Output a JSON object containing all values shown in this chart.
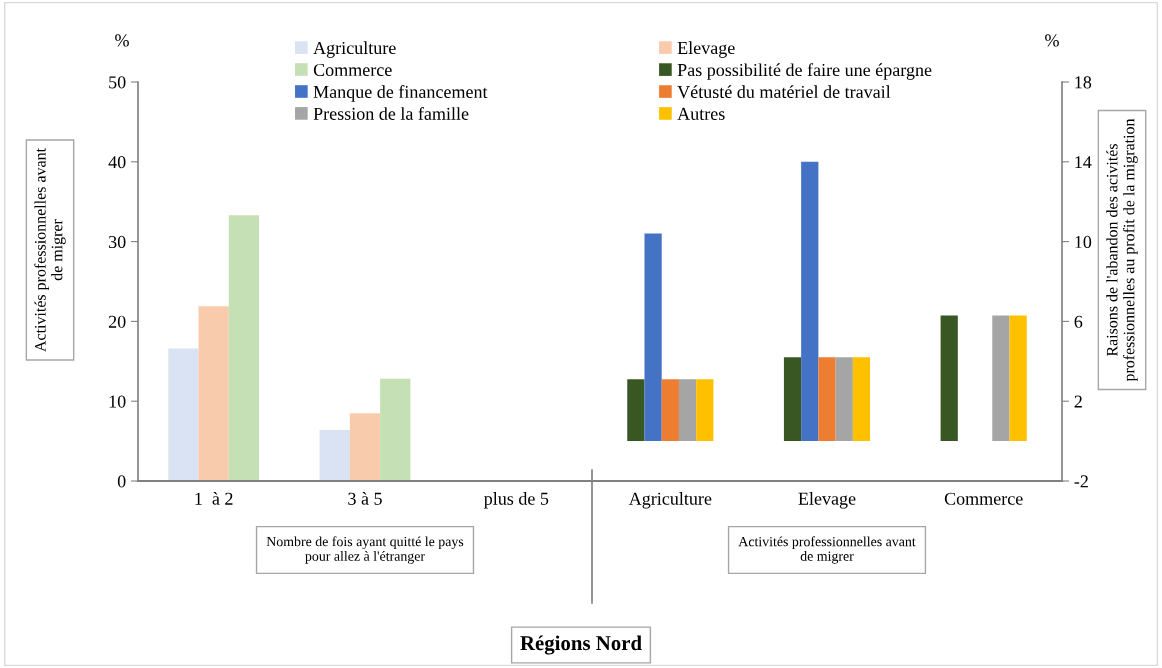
{
  "chart_data": [
    {
      "type": "bar",
      "title": "Régions Nord",
      "ylabel": "Activités professionnelles avant\nde migrer",
      "xlabel": "Nombre de fois ayant quitté le pays\npour allez à l'étranger",
      "categories": [
        "1  à 2",
        "3 à 5",
        "plus de 5"
      ],
      "series": [
        {
          "name": "Agriculture",
          "color": "#dae3f3",
          "values": [
            16.6,
            6.4,
            null
          ]
        },
        {
          "name": "Elevage",
          "color": "#f8cbad",
          "values": [
            21.9,
            8.5,
            null
          ]
        },
        {
          "name": "Commerce",
          "color": "#c5e0b4",
          "values": [
            33.3,
            12.8,
            null
          ]
        }
      ],
      "ylim": [
        0,
        50
      ],
      "yticks": [
        0,
        10,
        20,
        30,
        40,
        50
      ],
      "annotations": [
        "%"
      ],
      "legend": "top",
      "grid": false
    },
    {
      "type": "bar",
      "y2label": "Raisons de l'abandon des acivités\nprofessionnelles au profit de la migration",
      "xlabel": "Activités professionnelles avant\nde migrer",
      "categories": [
        "Agriculture",
        "Elevage",
        "Commerce"
      ],
      "series": [
        {
          "name": "Pas possibilité de faire une épargne",
          "color": "#385723",
          "axis": "y2",
          "values": [
            3.1,
            4.2,
            6.3
          ]
        },
        {
          "name": "Manque de financement",
          "color": "#4472c4",
          "axis": "y2",
          "values": [
            10.4,
            14.0,
            null
          ]
        },
        {
          "name": "Vétusté du matériel de travail",
          "color": "#ed7d31",
          "axis": "y2",
          "values": [
            3.1,
            4.2,
            null
          ]
        },
        {
          "name": "Pression de la famille",
          "color": "#a5a5a5",
          "axis": "y2",
          "values": [
            3.1,
            4.2,
            6.3
          ]
        },
        {
          "name": "Autres",
          "color": "#ffc000",
          "axis": "y2",
          "values": [
            3.1,
            4.2,
            6.3
          ]
        }
      ],
      "y2lim": [
        -2,
        18
      ],
      "y2ticks": [
        -2,
        2,
        6,
        10,
        14,
        18
      ],
      "annotations": [
        "%"
      ],
      "legend": "top",
      "grid": false
    }
  ]
}
